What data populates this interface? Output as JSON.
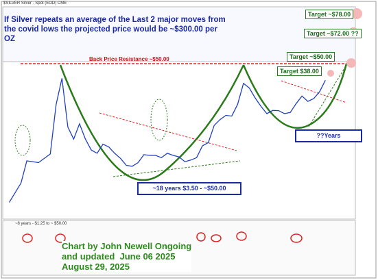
{
  "chart_data": {
    "type": "line",
    "header": "$SILVER Silver - Spot (EOD) CME",
    "headline": "If Silver repeats an average of the Last 2 major moves from the covid lows the projected price would be ~$300.00 per OZ",
    "targets": [
      "Target ~$78.00",
      "Target ~$72.00 ??",
      "Target ~$50.00",
      "Target $38.00"
    ],
    "resistance": "Back Price Resistance ~$50.00",
    "cycle_1": "~18 years $3.50 - ~$50.00",
    "cycle_2": "??Years",
    "rsi_note": "~8 years - $1.25 to ~ $50.00",
    "credit": [
      "Chart by John Newell Ongoing",
      "and updated  June 06 2025",
      "August 29, 2025"
    ],
    "log_scale": true,
    "xlim": [
      1970,
      2030
    ],
    "ylim": [
      1,
      60
    ],
    "x": [
      1971,
      1973,
      1974,
      1976,
      1978,
      1979,
      1980,
      1981,
      1982,
      1983,
      1984,
      1985,
      1986,
      1987,
      1988,
      1989,
      1990,
      1991,
      1992,
      1993,
      1994,
      1995,
      1996,
      1997,
      1998,
      1999,
      2000,
      2001,
      2002,
      2003,
      2004,
      2005,
      2006,
      2007,
      2008,
      2009,
      2010,
      2011,
      2012,
      2013,
      2014,
      2015,
      2016,
      2017,
      2018,
      2019,
      2020,
      2021,
      2022,
      2023,
      2024,
      2025
    ],
    "series": [
      {
        "name": "$SILVER",
        "color": "#1f3fbf",
        "values": [
          1.5,
          2.5,
          4.5,
          4.3,
          5.4,
          20,
          40,
          11,
          8,
          12,
          8,
          6,
          5.5,
          7,
          6.5,
          5.5,
          4.8,
          4,
          3.9,
          4.3,
          5.3,
          5.2,
          5.2,
          4.9,
          5.5,
          5.2,
          5,
          4.4,
          4.6,
          4.9,
          6.7,
          7.3,
          11.5,
          13.4,
          15,
          14.7,
          20,
          35,
          31,
          23.8,
          19,
          15.7,
          17.1,
          17,
          15.7,
          16.2,
          20.5,
          25,
          21.7,
          23.4,
          28,
          38
        ]
      }
    ]
  }
}
